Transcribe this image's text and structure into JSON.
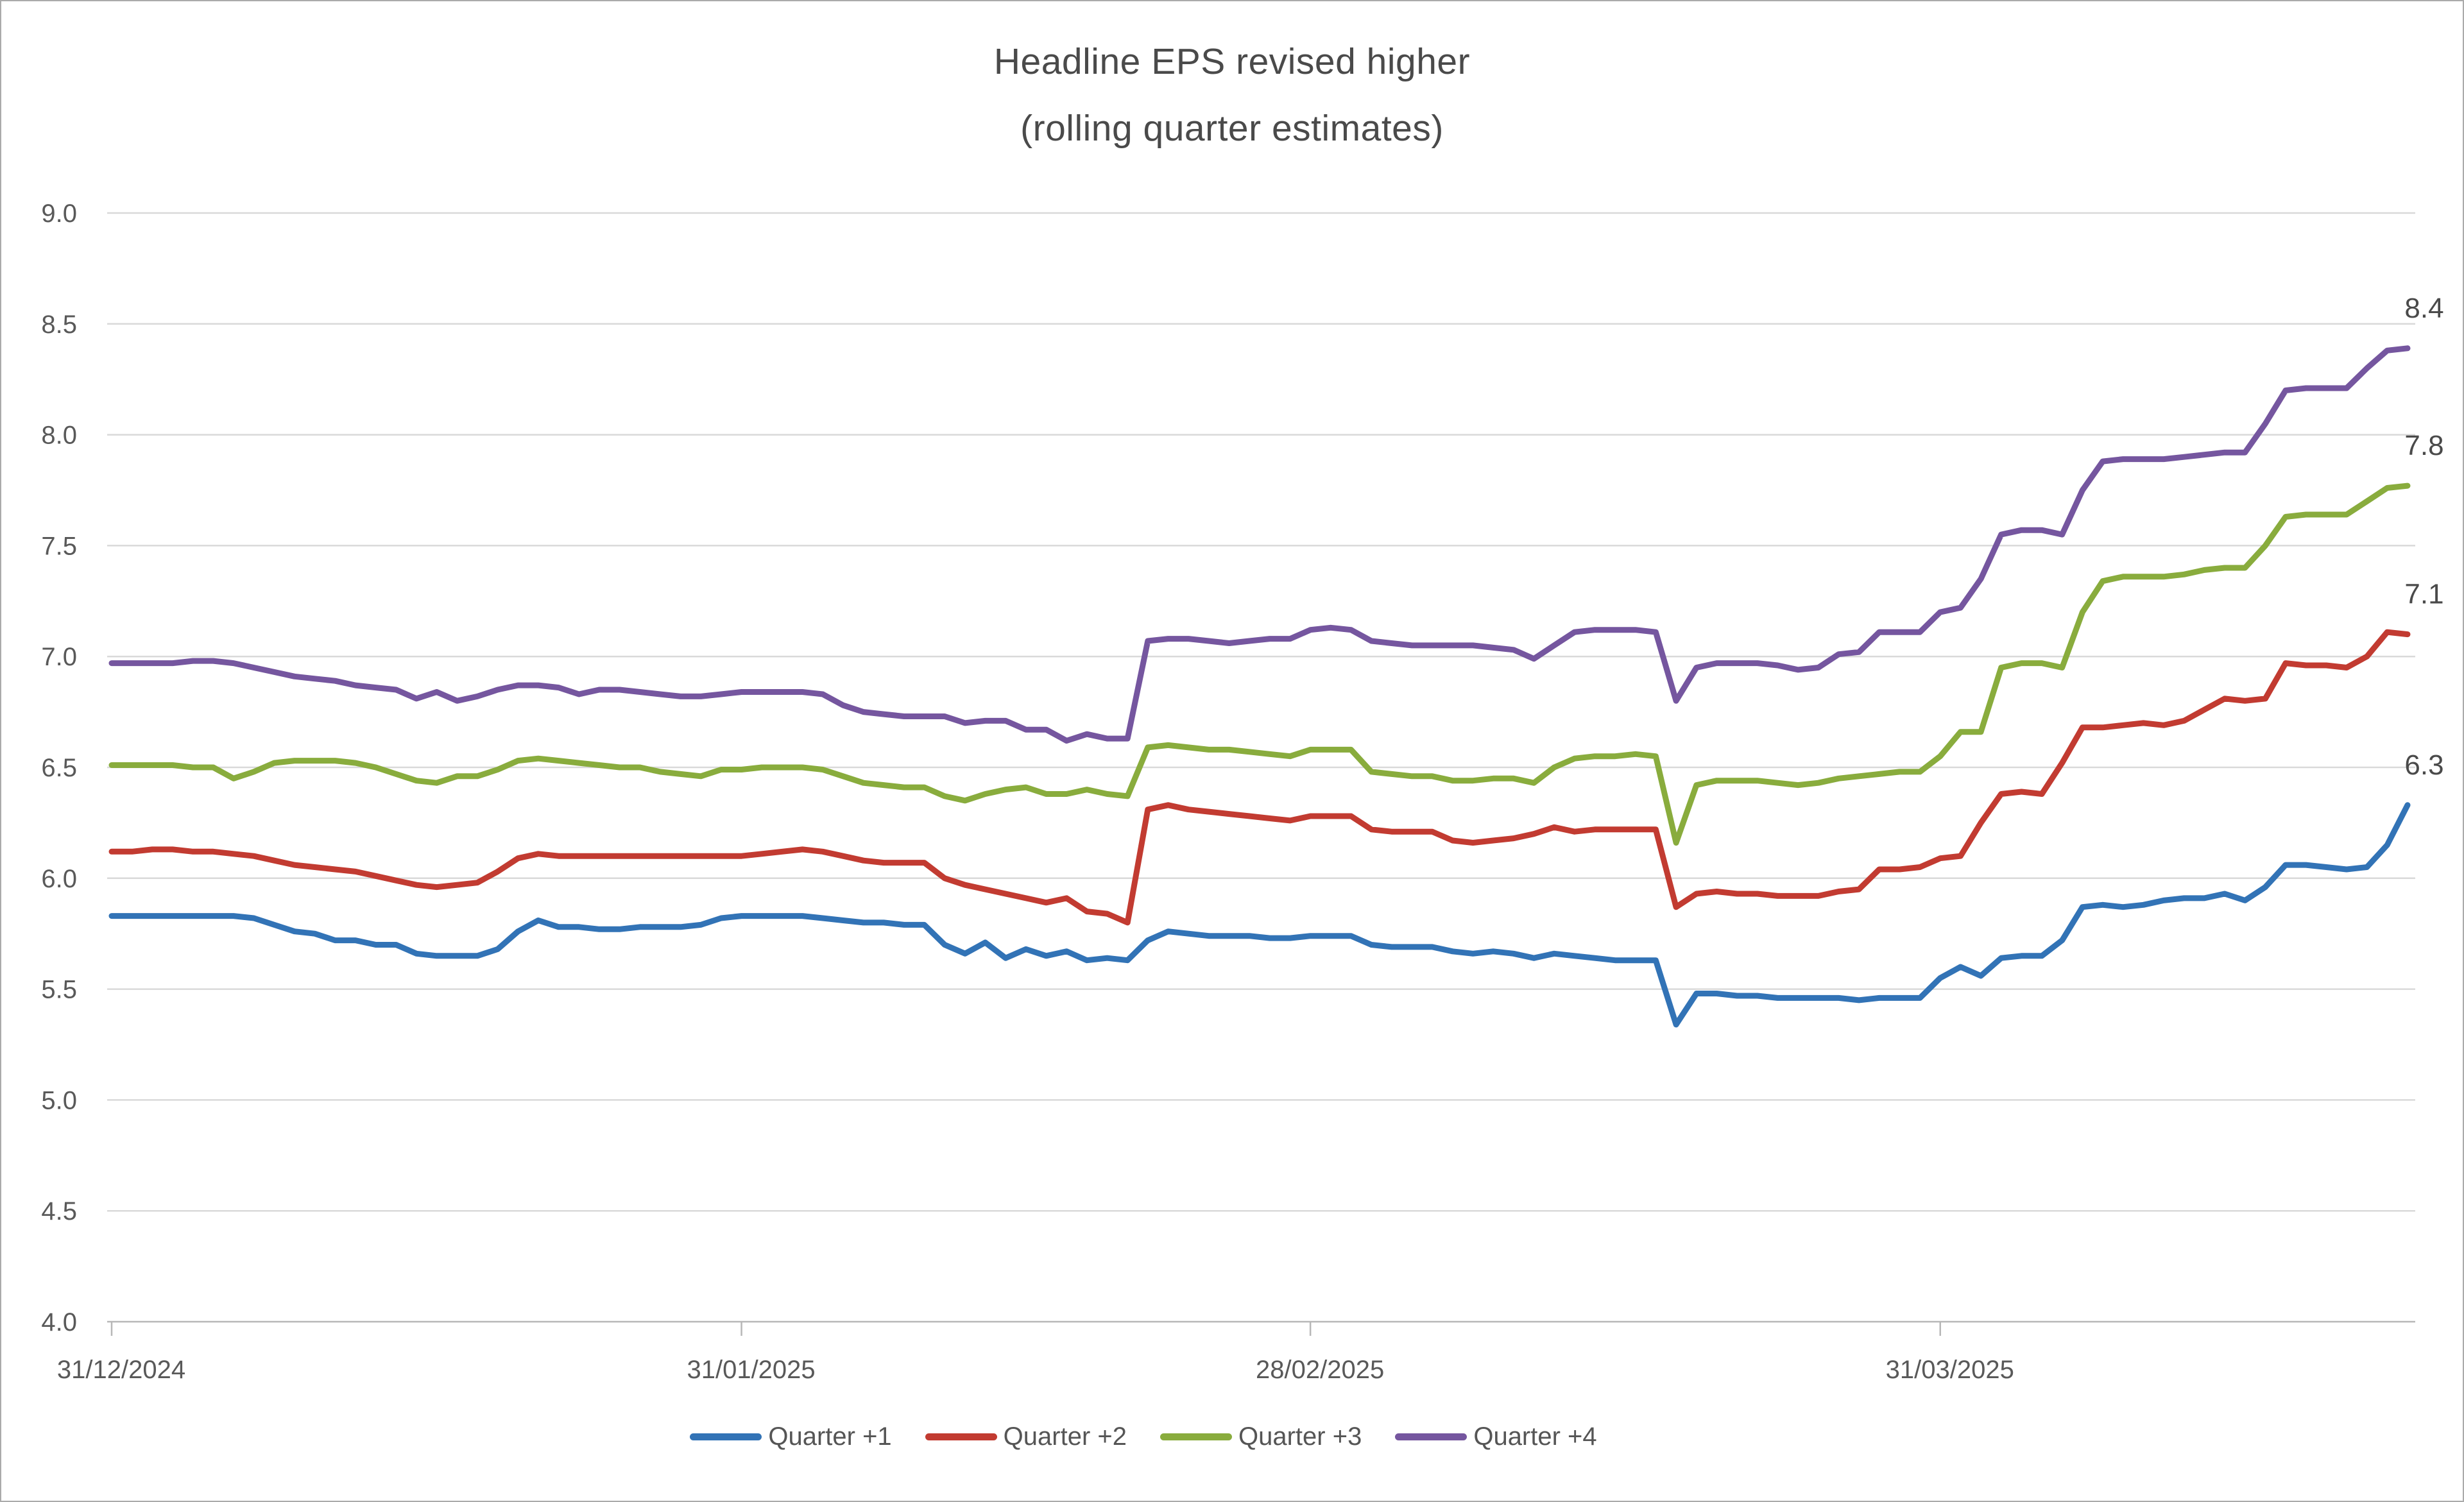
{
  "title": {
    "line1": "Headline EPS revised higher",
    "line2": "(rolling quarter estimates)"
  },
  "styles": {
    "grid_color": "#d9d9d9",
    "axis_color": "#b7b7b7",
    "tick_label_color": "#595959",
    "end_label_color": "#4a4a4a",
    "title_color": "#4a4a4a",
    "background": "#ffffff",
    "border_color": "#ababab"
  },
  "chart_data": {
    "type": "line",
    "title": "Headline EPS revised higher",
    "subtitle": "(rolling quarter estimates)",
    "xlabel": "",
    "ylabel": "",
    "grid": true,
    "legend_position": "bottom",
    "x_axis": {
      "unit": "daily dates",
      "start_date": "31/12/2024",
      "end_date": "23/04/2025",
      "n_points": 114,
      "tick_labels": [
        "31/12/2024",
        "31/01/2025",
        "28/02/2025",
        "31/03/2025"
      ],
      "tick_day_indices": [
        0,
        31,
        59,
        90
      ]
    },
    "y_axis": {
      "min": 4.0,
      "max": 9.0,
      "step": 0.5,
      "tick_labels": [
        "4.0",
        "4.5",
        "5.0",
        "5.5",
        "6.0",
        "6.5",
        "7.0",
        "7.5",
        "8.0",
        "8.5",
        "9.0"
      ]
    },
    "series": [
      {
        "name": "Quarter +1",
        "color": "#3273b6",
        "end_label": "6.3",
        "values": [
          5.83,
          5.83,
          5.83,
          5.83,
          5.83,
          5.83,
          5.83,
          5.82,
          5.79,
          5.76,
          5.75,
          5.72,
          5.72,
          5.7,
          5.7,
          5.66,
          5.65,
          5.65,
          5.65,
          5.68,
          5.76,
          5.81,
          5.78,
          5.78,
          5.77,
          5.77,
          5.78,
          5.78,
          5.78,
          5.79,
          5.82,
          5.83,
          5.83,
          5.83,
          5.83,
          5.82,
          5.81,
          5.8,
          5.8,
          5.79,
          5.79,
          5.7,
          5.66,
          5.71,
          5.64,
          5.68,
          5.65,
          5.67,
          5.63,
          5.64,
          5.63,
          5.72,
          5.76,
          5.75,
          5.74,
          5.74,
          5.74,
          5.73,
          5.73,
          5.74,
          5.74,
          5.74,
          5.7,
          5.69,
          5.69,
          5.69,
          5.67,
          5.66,
          5.67,
          5.66,
          5.64,
          5.66,
          5.65,
          5.64,
          5.63,
          5.63,
          5.63,
          5.34,
          5.48,
          5.48,
          5.47,
          5.47,
          5.46,
          5.46,
          5.46,
          5.46,
          5.45,
          5.46,
          5.46,
          5.46,
          5.55,
          5.6,
          5.56,
          5.64,
          5.65,
          5.65,
          5.72,
          5.87,
          5.88,
          5.87,
          5.88,
          5.9,
          5.91,
          5.91,
          5.93,
          5.9,
          5.96,
          6.06,
          6.06,
          6.05,
          6.04,
          6.05,
          6.15,
          6.33
        ]
      },
      {
        "name": "Quarter +2",
        "color": "#c23b31",
        "end_label": "7.1",
        "values": [
          6.12,
          6.12,
          6.13,
          6.13,
          6.12,
          6.12,
          6.11,
          6.1,
          6.08,
          6.06,
          6.05,
          6.04,
          6.03,
          6.01,
          5.99,
          5.97,
          5.96,
          5.97,
          5.98,
          6.03,
          6.09,
          6.11,
          6.1,
          6.1,
          6.1,
          6.1,
          6.1,
          6.1,
          6.1,
          6.1,
          6.1,
          6.1,
          6.11,
          6.12,
          6.13,
          6.12,
          6.1,
          6.08,
          6.07,
          6.07,
          6.07,
          6.0,
          5.97,
          5.95,
          5.93,
          5.91,
          5.89,
          5.91,
          5.85,
          5.84,
          5.8,
          6.31,
          6.33,
          6.31,
          6.3,
          6.29,
          6.28,
          6.27,
          6.26,
          6.28,
          6.28,
          6.28,
          6.22,
          6.21,
          6.21,
          6.21,
          6.17,
          6.16,
          6.17,
          6.18,
          6.2,
          6.23,
          6.21,
          6.22,
          6.22,
          6.22,
          6.22,
          5.87,
          5.93,
          5.94,
          5.93,
          5.93,
          5.92,
          5.92,
          5.92,
          5.94,
          5.95,
          6.04,
          6.04,
          6.05,
          6.09,
          6.1,
          6.25,
          6.38,
          6.39,
          6.38,
          6.52,
          6.68,
          6.68,
          6.69,
          6.7,
          6.69,
          6.71,
          6.76,
          6.81,
          6.8,
          6.81,
          6.97,
          6.96,
          6.96,
          6.95,
          7.0,
          7.11,
          7.1
        ]
      },
      {
        "name": "Quarter +3",
        "color": "#89ac3d",
        "end_label": "7.8",
        "values": [
          6.51,
          6.51,
          6.51,
          6.51,
          6.5,
          6.5,
          6.45,
          6.48,
          6.52,
          6.53,
          6.53,
          6.53,
          6.52,
          6.5,
          6.47,
          6.44,
          6.43,
          6.46,
          6.46,
          6.49,
          6.53,
          6.54,
          6.53,
          6.52,
          6.51,
          6.5,
          6.5,
          6.48,
          6.47,
          6.46,
          6.49,
          6.49,
          6.5,
          6.5,
          6.5,
          6.49,
          6.46,
          6.43,
          6.42,
          6.41,
          6.41,
          6.37,
          6.35,
          6.38,
          6.4,
          6.41,
          6.38,
          6.38,
          6.4,
          6.38,
          6.37,
          6.59,
          6.6,
          6.59,
          6.58,
          6.58,
          6.57,
          6.56,
          6.55,
          6.58,
          6.58,
          6.58,
          6.48,
          6.47,
          6.46,
          6.46,
          6.44,
          6.44,
          6.45,
          6.45,
          6.43,
          6.5,
          6.54,
          6.55,
          6.55,
          6.56,
          6.55,
          6.16,
          6.42,
          6.44,
          6.44,
          6.44,
          6.43,
          6.42,
          6.43,
          6.45,
          6.46,
          6.47,
          6.48,
          6.48,
          6.55,
          6.66,
          6.66,
          6.95,
          6.97,
          6.97,
          6.95,
          7.2,
          7.34,
          7.36,
          7.36,
          7.36,
          7.37,
          7.39,
          7.4,
          7.4,
          7.5,
          7.63,
          7.64,
          7.64,
          7.64,
          7.7,
          7.76,
          7.77
        ]
      },
      {
        "name": "Quarter +4",
        "color": "#75569f",
        "end_label": "8.4",
        "values": [
          6.97,
          6.97,
          6.97,
          6.97,
          6.98,
          6.98,
          6.97,
          6.95,
          6.93,
          6.91,
          6.9,
          6.89,
          6.87,
          6.86,
          6.85,
          6.81,
          6.84,
          6.8,
          6.82,
          6.85,
          6.87,
          6.87,
          6.86,
          6.83,
          6.85,
          6.85,
          6.84,
          6.83,
          6.82,
          6.82,
          6.83,
          6.84,
          6.84,
          6.84,
          6.84,
          6.83,
          6.78,
          6.75,
          6.74,
          6.73,
          6.73,
          6.73,
          6.7,
          6.71,
          6.71,
          6.67,
          6.67,
          6.62,
          6.65,
          6.63,
          6.63,
          7.07,
          7.08,
          7.08,
          7.07,
          7.06,
          7.07,
          7.08,
          7.08,
          7.12,
          7.13,
          7.12,
          7.07,
          7.06,
          7.05,
          7.05,
          7.05,
          7.05,
          7.04,
          7.03,
          6.99,
          7.05,
          7.11,
          7.12,
          7.12,
          7.12,
          7.11,
          6.8,
          6.95,
          6.97,
          6.97,
          6.97,
          6.96,
          6.94,
          6.95,
          7.01,
          7.02,
          7.11,
          7.11,
          7.11,
          7.2,
          7.22,
          7.35,
          7.55,
          7.57,
          7.57,
          7.55,
          7.75,
          7.88,
          7.89,
          7.89,
          7.89,
          7.9,
          7.91,
          7.92,
          7.92,
          8.05,
          8.2,
          8.21,
          8.21,
          8.21,
          8.3,
          8.38,
          8.39
        ]
      }
    ]
  }
}
